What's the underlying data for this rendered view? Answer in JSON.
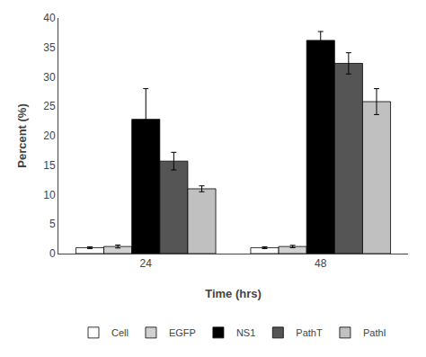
{
  "chart_data": {
    "type": "bar",
    "xlabel": "Time (hrs)",
    "ylabel": "Percent (%)",
    "categories": [
      "24",
      "48"
    ],
    "series": [
      {
        "name": "Cell",
        "color": "#ffffff",
        "values": [
          1.0,
          1.0
        ],
        "errors": [
          0.15,
          0.15
        ]
      },
      {
        "name": "EGFP",
        "color": "#d0d0d0",
        "values": [
          1.2,
          1.2
        ],
        "errors": [
          0.25,
          0.2
        ]
      },
      {
        "name": "NS1",
        "color": "#000000",
        "values": [
          22.8,
          36.2
        ],
        "errors": [
          5.2,
          1.5
        ]
      },
      {
        "name": "PathT",
        "color": "#555555",
        "values": [
          15.7,
          32.3
        ],
        "errors": [
          1.5,
          1.8
        ]
      },
      {
        "name": "PathI",
        "color": "#c0c0c0",
        "values": [
          11.0,
          25.8
        ],
        "errors": [
          0.5,
          2.2
        ]
      }
    ],
    "ylim": [
      0,
      40
    ],
    "yticks": [
      0,
      5,
      10,
      15,
      20,
      25,
      30,
      35,
      40
    ],
    "grid": false,
    "legend": "bottom"
  }
}
